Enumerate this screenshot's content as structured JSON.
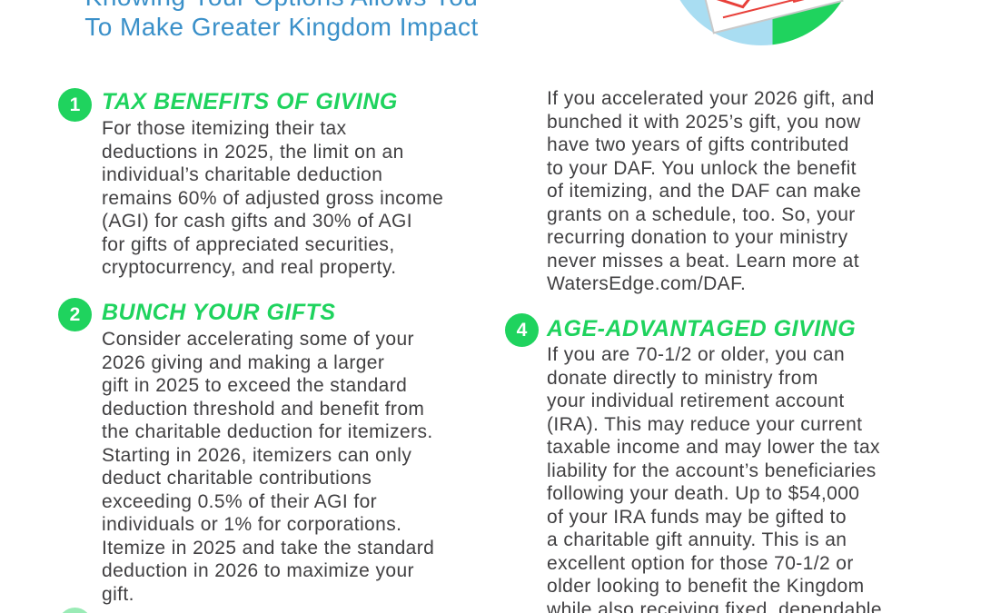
{
  "colors": {
    "green": "#1fd35e",
    "blue": "#3a90c9",
    "body": "#414042",
    "pie_blue": "#a9ddf2",
    "paper_red": "#e8403a"
  },
  "header": {
    "title_line1": "Knowing Your Options Allows You",
    "title_line2": "To Make Greater Kingdom Impact"
  },
  "graphic": {
    "description": "pie-chart circle with calendar page, cropped at top edge"
  },
  "sections": {
    "s1": {
      "number": "1",
      "title": "TAX BENEFITS OF GIVING",
      "lines": [
        "For those itemizing their tax",
        "deductions in 2025, the limit on an",
        "individual’s charitable deduction",
        "remains 60% of adjusted gross income",
        "(AGI) for cash gifts and 30% of AGI",
        "for gifts of appreciated securities,",
        "cryptocurrency, and real property."
      ]
    },
    "s2": {
      "number": "2",
      "title": "BUNCH YOUR GIFTS",
      "lines": [
        "Consider accelerating some of your",
        "2026 giving and making a larger",
        "gift in 2025 to exceed the standard",
        "deduction threshold and benefit from",
        "the charitable deduction for itemizers.",
        "Starting in 2026, itemizers can only",
        "deduct charitable contributions",
        "exceeding 0.5% of their AGI for",
        "individuals or 1% for corporations.",
        "Itemize in 2025 and take the standard",
        "deduction in 2026 to maximize your",
        "gift."
      ]
    },
    "s3_continuation": {
      "lines": [
        "If you accelerated your 2026 gift, and",
        "bunched it with 2025’s gift, you now",
        "have two years of gifts contributed",
        "to your DAF. You unlock the benefit",
        "of itemizing, and the DAF can make",
        "grants on a schedule, too. So, your",
        "recurring donation to your ministry",
        "never misses a beat. Learn more at",
        "WatersEdge.com/DAF."
      ]
    },
    "s4": {
      "number": "4",
      "title": "AGE-ADVANTAGED GIVING",
      "lines": [
        "If you are 70-1/2 or older, you can",
        "donate directly to ministry from",
        "your individual retirement account",
        "(IRA). This may reduce your current",
        "taxable income and may lower the tax",
        "liability for the account’s beneficiaries",
        "following your death. Up to $54,000",
        "of your IRA funds may be gifted to",
        "a charitable gift annuity. This is an",
        "excellent option for those 70-1/2 or",
        "older looking to benefit the Kingdom",
        "while also receiving fixed, dependable"
      ]
    }
  }
}
